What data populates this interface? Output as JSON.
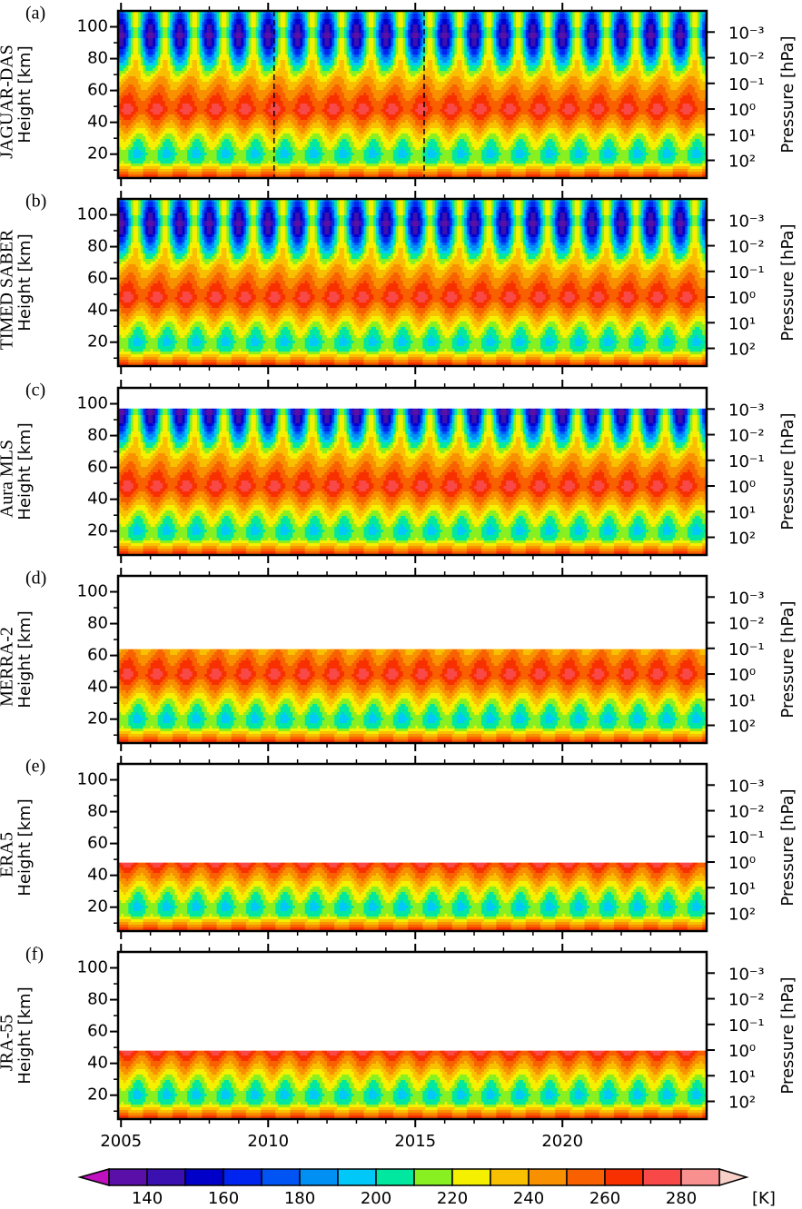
{
  "chart_data": {
    "type": "contour",
    "xlim": [
      2004.9,
      2024.9
    ],
    "xticks": [
      2005,
      2010,
      2015,
      2020
    ],
    "ylim": [
      5,
      110
    ],
    "yticks": [
      20,
      40,
      60,
      80,
      100
    ],
    "ylabel": "Height [km]",
    "y2label": "Pressure [hPa]",
    "y2ticks": [
      {
        "value": 0.001,
        "label": "10⁻³"
      },
      {
        "value": 0.01,
        "label": "10⁻²"
      },
      {
        "value": 0.1,
        "label": "10⁻¹"
      },
      {
        "value": 1,
        "label": "10⁰"
      },
      {
        "value": 10,
        "label": "10¹"
      },
      {
        "value": 100,
        "label": "10²"
      }
    ],
    "panels": [
      {
        "label": "(a)",
        "name": "JAGUAR-DAS",
        "top": 110,
        "dashed_lines": [
          2010.2,
          2015.3
        ]
      },
      {
        "label": "(b)",
        "name": "TIMED SABER",
        "top": 110
      },
      {
        "label": "(c)",
        "name": "Aura MLS",
        "top": 97
      },
      {
        "label": "(d)",
        "name": "MERRA-2",
        "top": 64
      },
      {
        "label": "(e)",
        "name": "ERA5",
        "top": 48
      },
      {
        "label": "(f)",
        "name": "JRA-55",
        "top": 48
      }
    ],
    "colorbar": {
      "levels": [
        130,
        140,
        150,
        160,
        170,
        180,
        190,
        200,
        210,
        220,
        230,
        240,
        250,
        260,
        270,
        280,
        290
      ],
      "ticks": [
        140,
        160,
        180,
        200,
        220,
        240,
        260,
        280
      ],
      "colors": [
        "#5a10a8",
        "#3a10b0",
        "#0000c8",
        "#0024f0",
        "#0054f4",
        "#0090f4",
        "#00c8f8",
        "#00e8a0",
        "#88f020",
        "#f4f000",
        "#f8c000",
        "#f89000",
        "#f86000",
        "#f83000",
        "#f84848",
        "#f89090"
      ],
      "under": "#c010c0",
      "over": "#f8d0c8",
      "unit": "[K]"
    }
  }
}
